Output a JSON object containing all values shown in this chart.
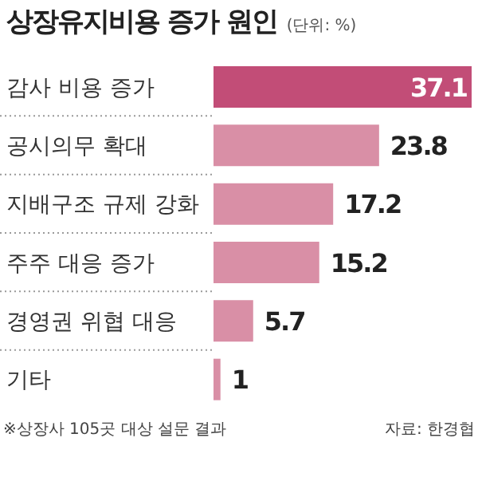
{
  "chart_data": {
    "type": "bar",
    "orientation": "horizontal",
    "title": "상장유지비용 증가 원인",
    "subtitle": "(단위: %)",
    "categories": [
      "감사 비용 증가",
      "공시의무 확대",
      "지배구조 규제 강화",
      "주주 대응 증가",
      "경영권 위협 대응",
      "기타"
    ],
    "values": [
      37.1,
      23.8,
      17.2,
      15.2,
      5.7,
      1
    ],
    "colors": [
      "#c24d77",
      "#d98fa6",
      "#d98fa6",
      "#d98fa6",
      "#d98fa6",
      "#d98fa6"
    ],
    "data_labels": true,
    "grid": "y",
    "annotations": [
      "※상장사 105곳 대상 설문 결과",
      "자료: 한경협"
    ]
  }
}
